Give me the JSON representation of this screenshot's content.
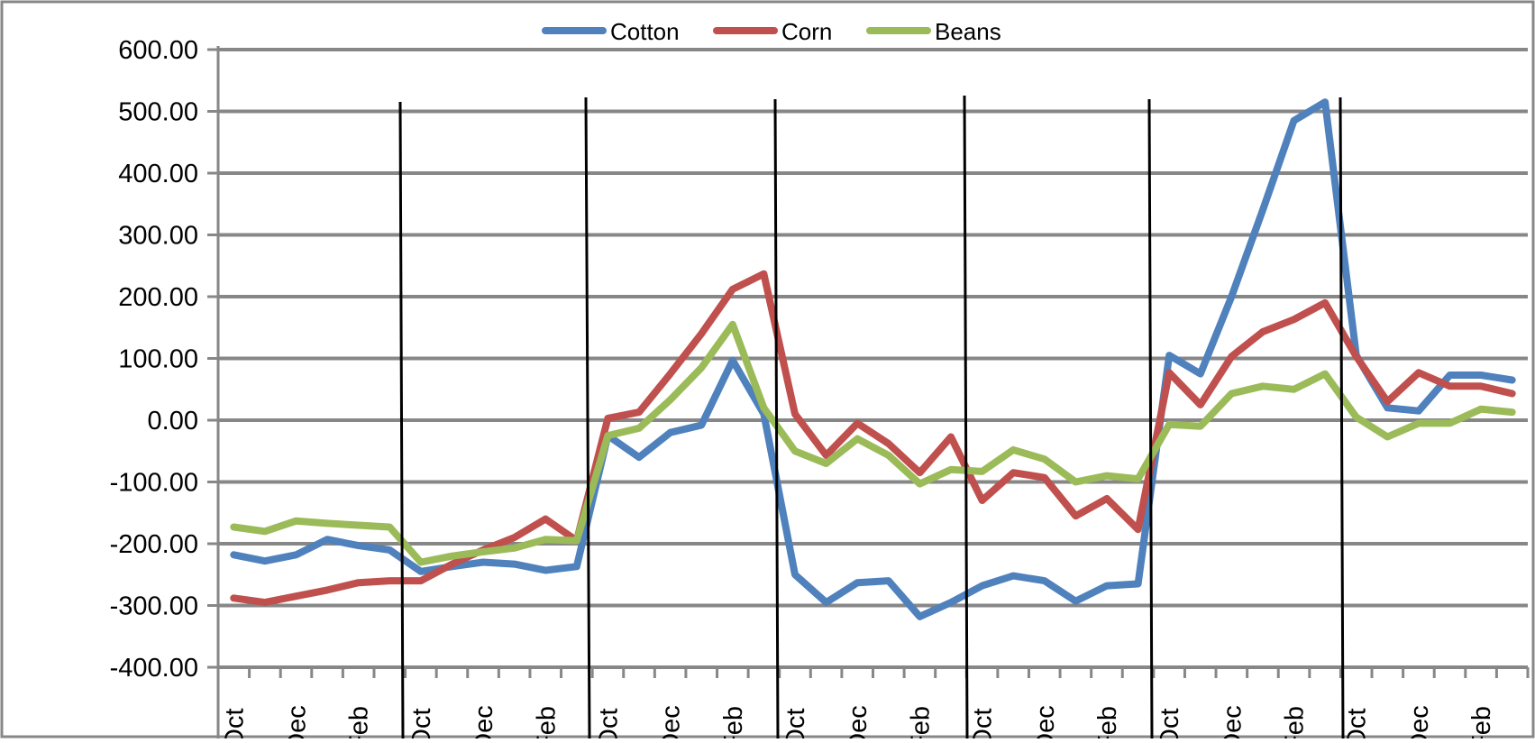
{
  "chart_data": {
    "type": "line",
    "title": "",
    "xlabel": "",
    "ylabel": "",
    "ylim": [
      -400,
      600
    ],
    "yticks": [
      600,
      500,
      400,
      300,
      200,
      100,
      0,
      -100,
      -200,
      -300,
      -400
    ],
    "ytick_labels": [
      "600.00",
      "500.00",
      "400.00",
      "300.00",
      "200.00",
      "100.00",
      "0.00",
      "-100.00",
      "-200.00",
      "-300.00",
      "-400.00"
    ],
    "grid": true,
    "legend_position": "top-center",
    "x_labels": [
      "Oct",
      "Dec",
      "Feb",
      "Oct",
      "Dec",
      "Feb",
      "Oct",
      "Dec",
      "Feb",
      "Oct",
      "Dec",
      "Feb",
      "Oct",
      "Dec",
      "Feb",
      "Oct",
      "Dec",
      "Feb",
      "Oct",
      "Dec",
      "Feb"
    ],
    "months_per_segment": 6,
    "segments": 7,
    "series": [
      {
        "name": "Cotton",
        "color": "#4F81BD",
        "values": [
          -218,
          -228,
          -218,
          -193,
          -203,
          -210,
          -245,
          -237,
          -230,
          -233,
          -243,
          -237,
          -25,
          -60,
          -20,
          -8,
          97,
          10,
          -250,
          -295,
          -263,
          -260,
          -318,
          -295,
          -268,
          -252,
          -260,
          -293,
          -268,
          -265,
          105,
          75,
          200,
          340,
          485,
          515,
          105,
          20,
          15,
          73,
          73,
          65
        ]
      },
      {
        "name": "Corn",
        "color": "#C0504D",
        "values": [
          -288,
          -295,
          -285,
          -275,
          -263,
          -260,
          -260,
          -233,
          -210,
          -190,
          -160,
          -195,
          3,
          13,
          75,
          140,
          212,
          237,
          10,
          -57,
          -5,
          -38,
          -85,
          -27,
          -130,
          -85,
          -93,
          -155,
          -127,
          -177,
          77,
          25,
          103,
          143,
          163,
          190,
          103,
          30,
          77,
          55,
          55,
          43
        ]
      },
      {
        "name": "Beans",
        "color": "#9BBB59",
        "values": [
          -173,
          -180,
          -163,
          -167,
          -170,
          -173,
          -230,
          -220,
          -213,
          -207,
          -193,
          -195,
          -25,
          -13,
          33,
          85,
          155,
          20,
          -50,
          -70,
          -30,
          -57,
          -103,
          -80,
          -83,
          -48,
          -63,
          -100,
          -90,
          -95,
          -7,
          -10,
          43,
          55,
          50,
          75,
          5,
          -27,
          -5,
          -5,
          18,
          13
        ]
      }
    ]
  }
}
